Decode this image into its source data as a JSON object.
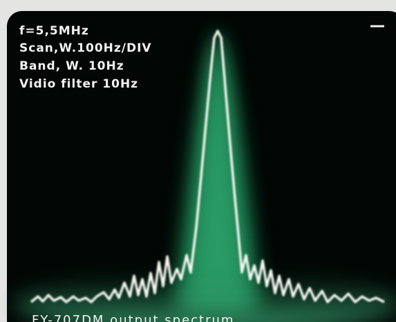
{
  "screen": {
    "annotations": [
      "f=5,5MHz",
      "Scan,W.100Hz/DIV",
      "Band, W. 10Hz",
      "Vidio filter 10Hz"
    ],
    "caption": "FY-707DM output spectrum"
  }
}
